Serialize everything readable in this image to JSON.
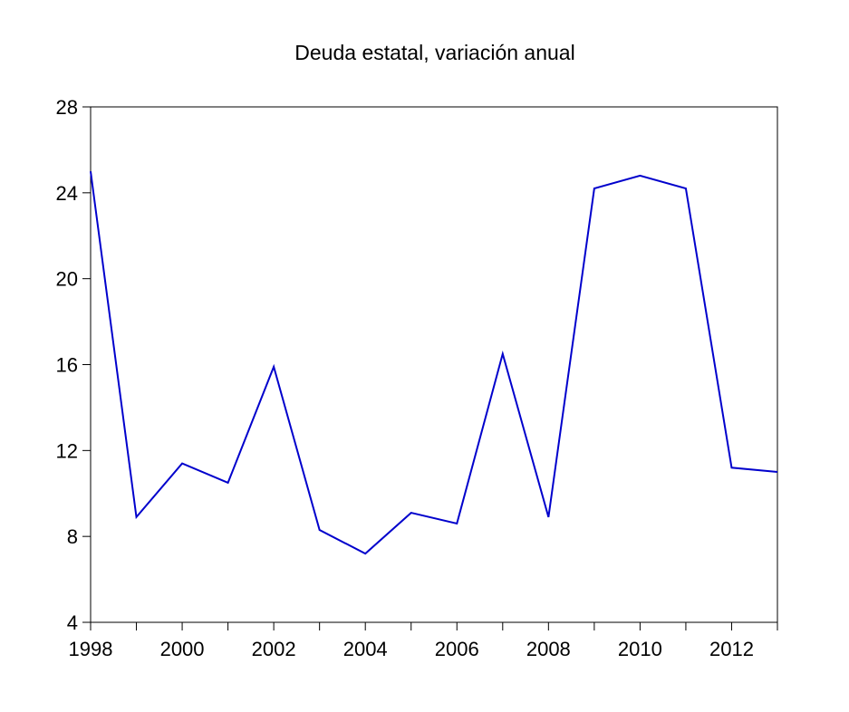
{
  "chart_data": {
    "type": "line",
    "title": "Deuda estatal, variación anual",
    "xlabel": "",
    "ylabel": "",
    "x": [
      1998,
      1999,
      2000,
      2001,
      2002,
      2003,
      2004,
      2005,
      2006,
      2007,
      2008,
      2009,
      2010,
      2011,
      2012,
      2013
    ],
    "series": [
      {
        "color": "#0000CC",
        "values": [
          25.0,
          8.9,
          11.4,
          10.5,
          15.9,
          8.3,
          7.2,
          9.1,
          8.6,
          16.5,
          8.9,
          24.2,
          24.8,
          24.2,
          11.2,
          11.0
        ]
      }
    ],
    "xlim": [
      1998,
      2013
    ],
    "ylim": [
      4,
      28
    ],
    "yticks": [
      4,
      8,
      12,
      16,
      20,
      24,
      28
    ],
    "xticks": [
      1998,
      1999,
      2000,
      2001,
      2002,
      2003,
      2004,
      2005,
      2006,
      2007,
      2008,
      2009,
      2010,
      2011,
      2012,
      2013
    ],
    "xtick_labels": [
      "1998",
      "2000",
      "2002",
      "2004",
      "2006",
      "2008",
      "2010",
      "2012"
    ],
    "grid": false,
    "legend": "none"
  }
}
